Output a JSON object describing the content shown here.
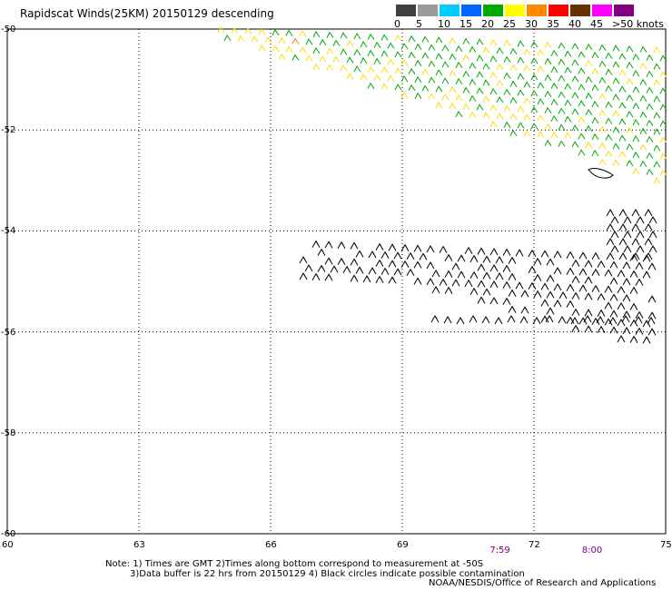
{
  "title": "Rapidscat Winds(25KM) 20150129 descending",
  "legend": {
    "labels": [
      "0",
      "5",
      "10",
      "15",
      "20",
      "25",
      "30",
      "35",
      "40",
      "45",
      ">50 knots"
    ],
    "colors": [
      "#404040",
      "#9a9a9a",
      "#00ccff",
      "#0066ff",
      "#00aa00",
      "#ffff00",
      "#ff8800",
      "#ff0000",
      "#663300",
      "#ff00ff",
      "#800080"
    ]
  },
  "chart_data": {
    "type": "scatter",
    "xlabel": "",
    "ylabel": "",
    "xlim": [
      60,
      75
    ],
    "ylim": [
      -60,
      -50
    ],
    "x_ticks": [
      "60",
      "63",
      "66",
      "69",
      "72",
      "75"
    ],
    "y_ticks": [
      "-50",
      "-52",
      "-54",
      "-56",
      "-58",
      "-60"
    ],
    "grid": true,
    "time_labels": [
      {
        "text": "7:59",
        "x": 71.2
      },
      {
        "text": "8:00",
        "x": 73.3
      }
    ]
  },
  "notes": {
    "line1": "Note: 1) Times are GMT 2)Times along bottom correspond to measurement at -50S",
    "line2": "3)Data buffer is 22 hrs from 20150129 4) Black circles indicate possible contamination",
    "credit": "NOAA/NESDIS/Office of Research and Applications"
  }
}
